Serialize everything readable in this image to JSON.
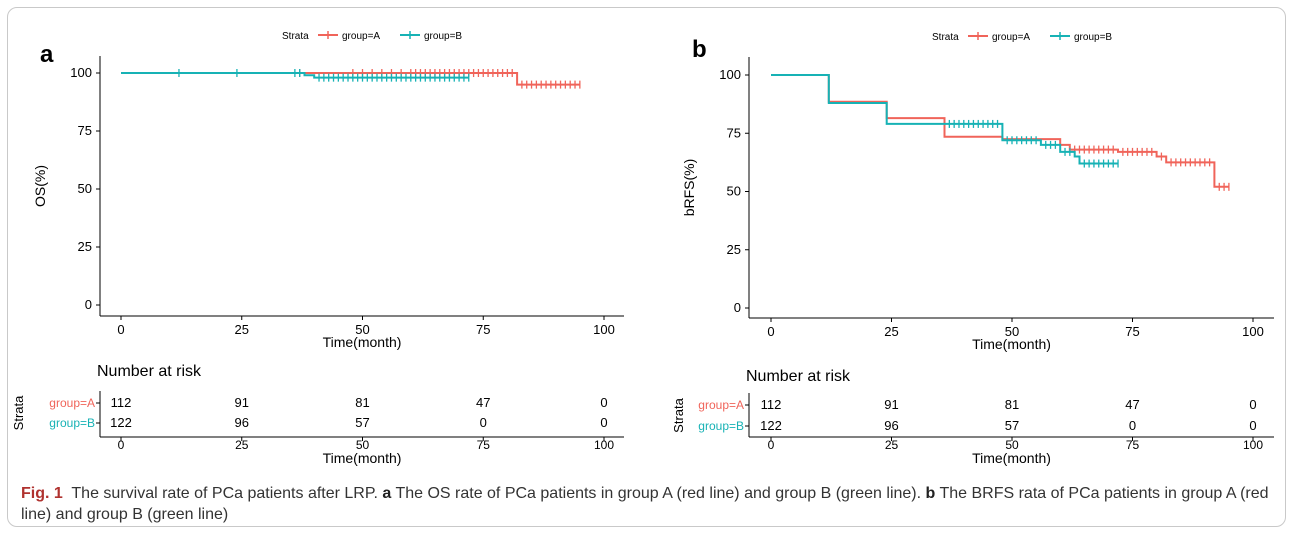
{
  "caption": {
    "fig_label": "Fig. 1",
    "title": "The survival rate of PCa patients after LRP.",
    "part_a_label": "a",
    "part_a_text": "The OS rate of PCa patients in group A (red line) and group B (green line).",
    "part_b_label": "b",
    "part_b_text": "The BRFS rata of PCa patients in group A (red line) and group B (green line)"
  },
  "colors": {
    "group_A": "#f0645a",
    "group_B": "#17b2b5",
    "axis": "#000000"
  },
  "chart_data": [
    {
      "panel": "a",
      "type": "line",
      "subtype": "kaplan-meier step curve",
      "legend": {
        "title": "Strata",
        "entries": [
          "group=A",
          "group=B"
        ],
        "placement": "top-center"
      },
      "xlabel": "Time(month)",
      "ylabel": "OS(%)",
      "xlim": [
        0,
        100
      ],
      "ylim": [
        0,
        100
      ],
      "xticks": [
        "0",
        "25",
        "50",
        "75",
        "100"
      ],
      "yticks": [
        "0",
        "25",
        "50",
        "75",
        "100"
      ],
      "grid": false,
      "series": [
        {
          "name": "group=A",
          "steps": [
            [
              0,
              100
            ],
            [
              82,
              100
            ],
            [
              82,
              95
            ],
            [
              95,
              95
            ]
          ],
          "censor_x": [
            37,
            48,
            50,
            52,
            54,
            56,
            58,
            60,
            61,
            62,
            63,
            64,
            65,
            66,
            67,
            68,
            69,
            70,
            71,
            72,
            73,
            74,
            75,
            76,
            77,
            78,
            79,
            80,
            81,
            83,
            84,
            85,
            86,
            87,
            88,
            89,
            90,
            91,
            92,
            93,
            94,
            95
          ]
        },
        {
          "name": "group=B",
          "steps": [
            [
              0,
              100
            ],
            [
              38,
              100
            ],
            [
              38,
              99
            ],
            [
              40,
              99
            ],
            [
              40,
              98
            ],
            [
              72,
              98
            ]
          ],
          "censor_x": [
            12,
            24,
            36,
            37,
            41,
            42,
            43,
            44,
            45,
            46,
            47,
            48,
            49,
            50,
            51,
            52,
            53,
            54,
            55,
            56,
            57,
            58,
            59,
            60,
            61,
            62,
            63,
            64,
            65,
            66,
            67,
            68,
            69,
            70,
            71,
            72
          ]
        }
      ],
      "risk_table": {
        "title": "Number at risk",
        "strata_label": "Strata",
        "xlabel": "Time(month)",
        "xticks": [
          "0",
          "25",
          "50",
          "75",
          "100"
        ],
        "times": [
          0,
          25,
          50,
          75,
          100
        ],
        "rows": [
          {
            "name": "group=A",
            "counts": [
              "112",
              "91",
              "81",
              "47",
              "0"
            ]
          },
          {
            "name": "group=B",
            "counts": [
              "122",
              "96",
              "57",
              "0",
              "0"
            ]
          }
        ]
      }
    },
    {
      "panel": "b",
      "type": "line",
      "subtype": "kaplan-meier step curve",
      "legend": {
        "title": "Strata",
        "entries": [
          "group=A",
          "group=B"
        ],
        "placement": "top-center"
      },
      "xlabel": "Time(month)",
      "ylabel": "bRFS(%)",
      "xlim": [
        0,
        100
      ],
      "ylim": [
        0,
        100
      ],
      "xticks": [
        "0",
        "25",
        "50",
        "75",
        "100"
      ],
      "yticks": [
        "0",
        "25",
        "50",
        "75",
        "100"
      ],
      "grid": false,
      "series": [
        {
          "name": "group=A",
          "steps": [
            [
              0,
              100
            ],
            [
              12,
              100
            ],
            [
              12,
              88.5
            ],
            [
              24,
              88.5
            ],
            [
              24,
              81.5
            ],
            [
              36,
              81.5
            ],
            [
              36,
              73.5
            ],
            [
              48,
              73.5
            ],
            [
              48,
              72.5
            ],
            [
              60,
              72.5
            ],
            [
              60,
              70
            ],
            [
              62,
              70
            ],
            [
              62,
              68
            ],
            [
              72,
              68
            ],
            [
              72,
              67
            ],
            [
              80,
              67
            ],
            [
              80,
              65
            ],
            [
              82,
              65
            ],
            [
              82,
              62.5
            ],
            [
              92,
              62.5
            ],
            [
              92,
              52
            ],
            [
              95,
              52
            ]
          ],
          "censor_x": [
            63,
            64,
            65,
            66,
            67,
            68,
            69,
            70,
            71,
            73,
            74,
            75,
            76,
            77,
            78,
            79,
            81,
            83,
            84,
            85,
            86,
            87,
            88,
            89,
            90,
            91,
            93,
            94,
            95
          ]
        },
        {
          "name": "group=B",
          "steps": [
            [
              0,
              100
            ],
            [
              12,
              100
            ],
            [
              12,
              88
            ],
            [
              24,
              88
            ],
            [
              24,
              79
            ],
            [
              48,
              79
            ],
            [
              48,
              72
            ],
            [
              56,
              72
            ],
            [
              56,
              70
            ],
            [
              60,
              70
            ],
            [
              60,
              67
            ],
            [
              63,
              67
            ],
            [
              63,
              65
            ],
            [
              64,
              65
            ],
            [
              64,
              62
            ],
            [
              72,
              62
            ]
          ],
          "censor_x": [
            37,
            38,
            39,
            40,
            41,
            42,
            43,
            44,
            45,
            46,
            47,
            49,
            50,
            51,
            52,
            53,
            54,
            55,
            57,
            58,
            59,
            61,
            62,
            65,
            66,
            67,
            68,
            69,
            70,
            71,
            72
          ]
        }
      ],
      "risk_table": {
        "title": "Number at risk",
        "strata_label": "Strata",
        "xlabel": "Time(month)",
        "xticks": [
          "0",
          "25",
          "50",
          "75",
          "100"
        ],
        "times": [
          0,
          25,
          50,
          75,
          100
        ],
        "rows": [
          {
            "name": "group=A",
            "counts": [
              "112",
              "91",
              "81",
              "47",
              "0"
            ]
          },
          {
            "name": "group=B",
            "counts": [
              "122",
              "96",
              "57",
              "0",
              "0"
            ]
          }
        ]
      }
    }
  ]
}
